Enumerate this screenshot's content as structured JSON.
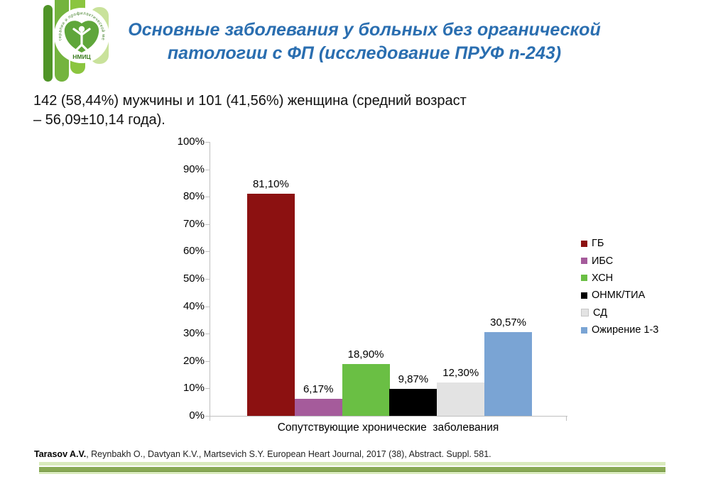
{
  "logo": {
    "ring_text": "терапии и профилактической медицины",
    "center_label": "НМИЦ"
  },
  "header": {
    "title_line1": "Основные заболевания у больных без органической",
    "title_line2": "патологии с ФП (исследование ПРУФ n-243)",
    "title_color": "#2a6eb0"
  },
  "intro": {
    "line1": "142 (58,44%) мужчины и 101 (41,56%) женщина (средний возраст",
    "line2": "– 56,09±10,14 года)."
  },
  "chart_data": {
    "type": "bar",
    "title": "",
    "xlabel": "Сопутствующие хронические  заболевания",
    "ylabel": "",
    "ylim": [
      0,
      100
    ],
    "y_tick_step": 10,
    "y_tick_labels": [
      "100%",
      "90%",
      "80%",
      "70%",
      "60%",
      "50%",
      "40%",
      "30%",
      "20%",
      "10%",
      "0%"
    ],
    "categories": [
      "ГБ",
      "ИБС",
      "ХСН",
      "ОНМК/ТИА",
      "СД",
      "Ожирение 1-3"
    ],
    "values": [
      81.1,
      6.17,
      18.9,
      9.87,
      12.3,
      30.57
    ],
    "data_labels": [
      "81,10%",
      "6,17%",
      "18,90%",
      "9,87%",
      "12,30%",
      "30,57%"
    ],
    "colors": [
      "#8c1111",
      "#a55b9b",
      "#6abf44",
      "#000000",
      "#e3e3e3",
      "#7aa4d4"
    ],
    "legend_position": "right",
    "grid": false,
    "axis_color": "#bfbfbf"
  },
  "footer": {
    "citation_bold": "Tarasov A.V.",
    "citation_rest": ", Reynbakh O., Davtyan K.V., Martsevich S.Y. European Heart Journal, 2017 (38), Abstract. Suppl. 581."
  }
}
